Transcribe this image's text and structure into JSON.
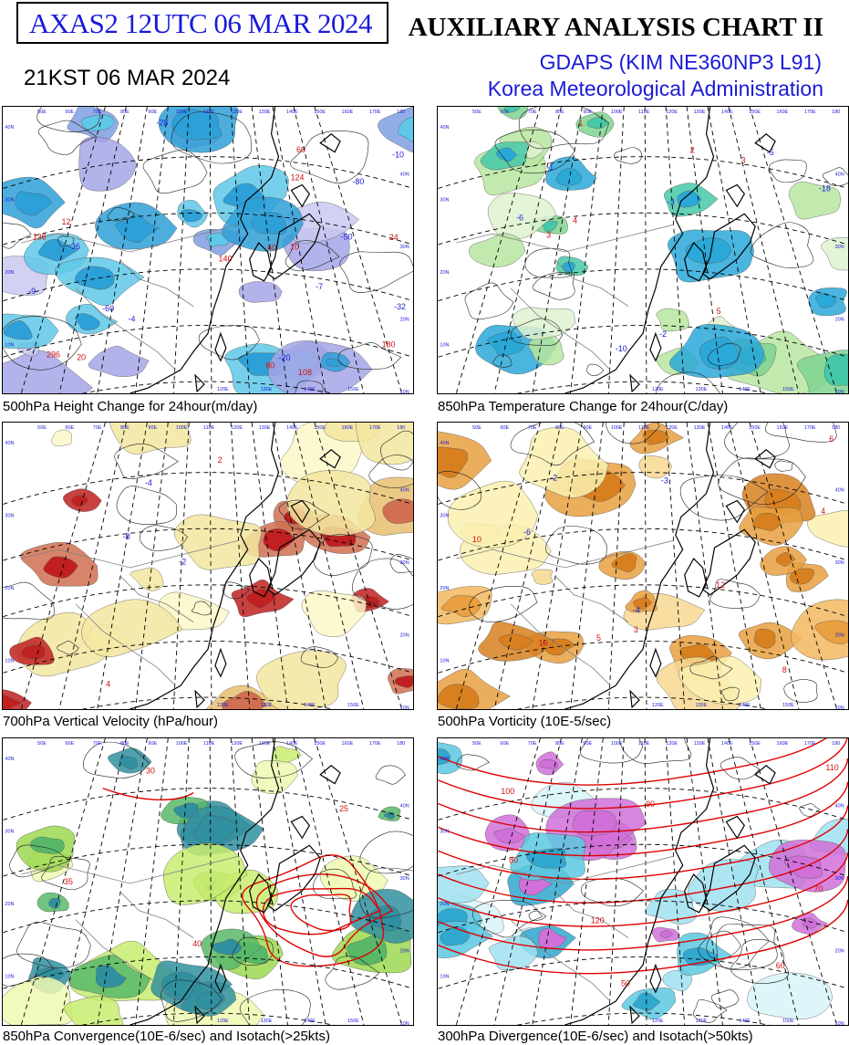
{
  "header": {
    "product_code": "AXAS2  12UTC 06 MAR 2024",
    "local_time": "21KST 06 MAR 2024",
    "title": "AUXILIARY ANALYSIS CHART II",
    "model": "GDAPS (KIM NE360NP3 L91)",
    "agency": "Korea Meteorological Administration"
  },
  "panels": [
    {
      "id": "h500",
      "caption": "500hPa Height Change for 24hour(m/day)",
      "palette": [
        "#c9c9f2",
        "#a6a6e8",
        "#7f9fe0",
        "#5fc8e8",
        "#2ea0d8"
      ],
      "labels": [
        "-80",
        "-60",
        "-50",
        "-32",
        "-20",
        "-10",
        "10",
        "20",
        "24",
        "40",
        "60",
        "80",
        "108",
        "124",
        "136",
        "140",
        "180",
        "296",
        "-7",
        "-4",
        "-9",
        "12",
        "-28",
        "-36"
      ]
    },
    {
      "id": "t850",
      "caption": "850hPa Temperature Change for 24hour(C/day)",
      "palette": [
        "#dff2d0",
        "#b8e6a0",
        "#7fd490",
        "#46c8a8",
        "#2aa8d8"
      ],
      "labels": [
        "-6",
        "-5",
        "-3",
        "-2",
        "-1",
        "1",
        "2",
        "3",
        "4",
        "-10",
        "-18",
        "3",
        "5"
      ]
    },
    {
      "id": "w700",
      "caption": "700hPa Vertical Velocity (hPa/hour)",
      "palette": [
        "#fbf7c8",
        "#f3e6a0",
        "#e8c070",
        "#d07050",
        "#c02020"
      ],
      "labels": [
        "-2",
        "-4",
        "-8",
        "2",
        "4"
      ]
    },
    {
      "id": "v500",
      "caption": "500hPa Vorticity (10E-5/sec)",
      "palette": [
        "#faf0b0",
        "#f7d890",
        "#f2b860",
        "#e8a040",
        "#d88020"
      ],
      "labels": [
        "3",
        "4",
        "5",
        "6",
        "8",
        "10",
        "12",
        "-2",
        "-3",
        "-4",
        "-6",
        "16"
      ]
    },
    {
      "id": "c850",
      "caption": "850hPa Convergence(10E-6/sec) and Isotach(>25kts)",
      "palette": [
        "#eef8b0",
        "#c8ec70",
        "#9cd850",
        "#58b868",
        "#3090a0"
      ],
      "labels": [
        "25",
        "30",
        "35",
        "40"
      ]
    },
    {
      "id": "d300",
      "caption": "300hPa Divergence(10E-6/sec) and Isotach(>50kts)",
      "palette": [
        "#d8f4f8",
        "#a0e0f0",
        "#5cc8e0",
        "#30a8d0",
        "#d070d8"
      ],
      "labels": [
        "50",
        "60",
        "70",
        "80",
        "90",
        "100",
        "110",
        "120"
      ]
    }
  ],
  "map_grid": {
    "lon_labels": [
      "50E",
      "60E",
      "70E",
      "80E",
      "90E",
      "100E",
      "110E",
      "120E",
      "130E",
      "140E",
      "150E",
      "160E",
      "170E",
      "180"
    ],
    "bottom_lon_labels": [
      "120E",
      "130E",
      "140E",
      "150E"
    ],
    "lat_labels": [
      "40N",
      "30N",
      "20N",
      "10N"
    ]
  },
  "colors": {
    "title_blue": "#1a1ad8",
    "coast": "#000000",
    "border": "#808080",
    "grid": "#000000",
    "isotach": "#e00000"
  }
}
